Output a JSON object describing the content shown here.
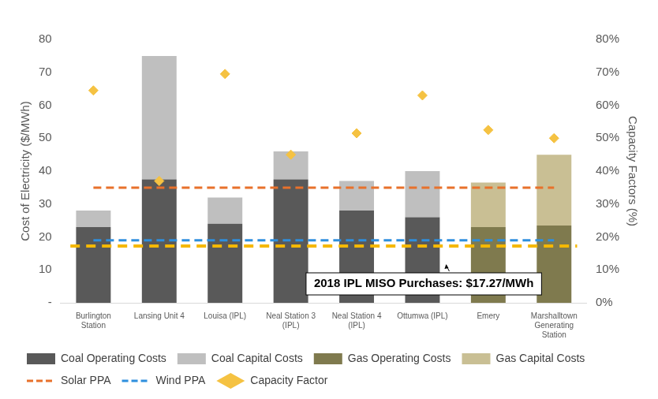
{
  "chart_data": {
    "type": "bar",
    "stacked": true,
    "grid": false,
    "legend": "bottom",
    "categories": [
      "Burlington Station",
      "Lansing Unit 4",
      "Louisa (IPL)",
      "Neal Station 3 (IPL)",
      "Neal Station 4 (IPL)",
      "Ottumwa (IPL)",
      "Emery",
      "Marshalltown Generating Station"
    ],
    "y_label": "Cost of Electricity ($/MWh)",
    "y2_label": "Capacity Factors (%)",
    "ylim": [
      0,
      80
    ],
    "yticks": [
      {
        "value": 0,
        "label": "-"
      },
      10,
      20,
      30,
      40,
      50,
      60,
      70,
      80
    ],
    "y2lim": [
      0,
      80
    ],
    "y2ticks": [
      {
        "value": 0,
        "label": "0%"
      },
      {
        "value": 10,
        "label": "10%"
      },
      {
        "value": 20,
        "label": "20%"
      },
      {
        "value": 30,
        "label": "30%"
      },
      {
        "value": 40,
        "label": "40%"
      },
      {
        "value": 50,
        "label": "50%"
      },
      {
        "value": 60,
        "label": "60%"
      },
      {
        "value": 70,
        "label": "70%"
      },
      {
        "value": 80,
        "label": "80%"
      }
    ],
    "series": [
      {
        "name": "Coal Operating Costs",
        "type": "bar",
        "color": "#595959",
        "values": [
          23,
          37.5,
          24,
          37.5,
          28,
          26,
          null,
          null
        ]
      },
      {
        "name": "Coal Capital Costs",
        "type": "bar",
        "color": "#bfbfbf",
        "values": [
          5,
          37.5,
          8,
          8.5,
          9,
          14,
          null,
          null
        ]
      },
      {
        "name": "Gas Operating Costs",
        "type": "bar",
        "color": "#7f7a4e",
        "values": [
          null,
          null,
          null,
          null,
          null,
          null,
          23,
          23.5
        ]
      },
      {
        "name": "Gas Capital Costs",
        "type": "bar",
        "color": "#c9bf94",
        "values": [
          null,
          null,
          null,
          null,
          null,
          null,
          13.5,
          21.5
        ]
      },
      {
        "name": "Solar PPA",
        "type": "line",
        "line_style": "dashed",
        "color": "#e8712b",
        "values": [
          35,
          35,
          35,
          35,
          35,
          35,
          35,
          35
        ]
      },
      {
        "name": "Wind PPA",
        "type": "line",
        "line_style": "dashed",
        "color": "#2e8fde",
        "values": [
          19,
          19,
          19,
          19,
          19,
          19,
          19,
          19
        ]
      },
      {
        "name": "Capacity Factor",
        "type": "scatter",
        "marker": "diamond",
        "axis": "y2",
        "color": "#f5c242",
        "values": [
          64.5,
          37,
          69.5,
          45,
          51.5,
          63,
          52.5,
          50
        ]
      }
    ],
    "annotations": [
      {
        "text": "2018 IPL MISO Purchases: $17.27/MWh",
        "value": 17.27,
        "color": "#f5b800",
        "line_style": "dashed"
      }
    ]
  }
}
